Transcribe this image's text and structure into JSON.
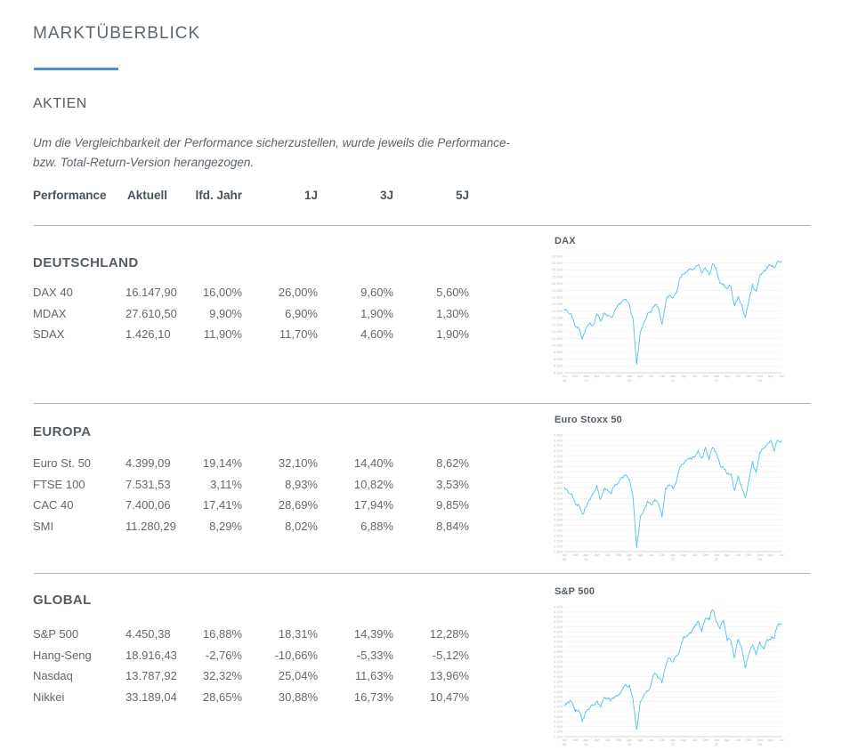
{
  "page": {
    "title": "MARKTÜBERBLICK",
    "section_heading": "AKTIEN",
    "disclaimer": "Um die Vergleichbarkeit der Performance sicherzustellen, wurde jeweils die Performance-\nbzw. Total-Return-Version herangezogen.",
    "accent_color": "#4a90d2"
  },
  "table": {
    "columns": [
      "Performance",
      "Aktuell",
      "lfd. Jahr",
      "1J",
      "3J",
      "5J"
    ],
    "sections": [
      {
        "name": "DEUTSCHLAND",
        "rows": [
          {
            "label": "DAX 40",
            "values": [
              "16.147,90",
              "16,00%",
              "26,00%",
              "9,60%",
              "5,60%"
            ]
          },
          {
            "label": "MDAX",
            "values": [
              "27.610,50",
              "9,90%",
              "6,90%",
              "1,90%",
              "1,30%"
            ]
          },
          {
            "label": "SDAX",
            "values": [
              "1.426,10",
              "11,90%",
              "11,70%",
              "4,60%",
              "1,90%"
            ]
          }
        ]
      },
      {
        "name": "EUROPA",
        "rows": [
          {
            "label": "Euro St. 50",
            "values": [
              "4.399,09",
              "19,14%",
              "32,10%",
              "14,40%",
              "8,62%"
            ]
          },
          {
            "label": "FTSE 100",
            "values": [
              "7.531,53",
              "3,11%",
              "8,93%",
              "10,82%",
              "3,53%"
            ]
          },
          {
            "label": "CAC 40",
            "values": [
              "7.400,06",
              "17,41%",
              "28,69%",
              "17,94%",
              "9,85%"
            ]
          },
          {
            "label": "SMI",
            "values": [
              "11.280,29",
              "8,29%",
              "8,02%",
              "6,88%",
              "8,84%"
            ]
          }
        ]
      },
      {
        "name": "GLOBAL",
        "rows": [
          {
            "label": "S&P 500",
            "values": [
              "4.450,38",
              "16,88%",
              "18,31%",
              "14,39%",
              "12,28%"
            ]
          },
          {
            "label": "Hang-Seng",
            "values": [
              "18.916,43",
              "-2,76%",
              "-10,66%",
              "-5,33%",
              "-5,12%"
            ]
          },
          {
            "label": "Nasdaq",
            "values": [
              "13.787,92",
              "32,32%",
              "25,04%",
              "11,63%",
              "13,96%"
            ]
          },
          {
            "label": "Nikkei",
            "values": [
              "33.189,04",
              "28,65%",
              "30,88%",
              "16,73%",
              "10,47%"
            ]
          }
        ]
      }
    ]
  },
  "chart_data": [
    {
      "type": "line",
      "title": "DAX",
      "line_color": "#54c2e7",
      "x_note": "monthly, Jul 2018 - Jul 2023",
      "x_ticks": [
        "Jul 18",
        "Okt",
        "Jan 19",
        "Apr",
        "Jul",
        "Okt",
        "Jan 20",
        "Apr",
        "Jul",
        "Okt",
        "Jan 21",
        "Apr",
        "Jul",
        "Okt",
        "Jan 22",
        "Apr",
        "Jul",
        "Okt",
        "Jan 23",
        "Apr",
        "Jul"
      ],
      "ylim": [
        8000,
        16500
      ],
      "y_step": 500,
      "grid": true,
      "legend": "none",
      "values": [
        12750,
        12400,
        12250,
        11450,
        11250,
        10560,
        11200,
        11500,
        11520,
        12350,
        11730,
        12400,
        12200,
        11940,
        12430,
        12870,
        13240,
        13250,
        12980,
        11890,
        8560,
        10860,
        11590,
        12310,
        12310,
        12950,
        12760,
        11560,
        13290,
        13720,
        13430,
        13790,
        15010,
        15140,
        15420,
        15530,
        15540,
        15840,
        15260,
        15690,
        15100,
        15880,
        15470,
        14460,
        14410,
        14100,
        14390,
        12780,
        13480,
        12830,
        12110,
        13250,
        14400,
        13920,
        15130,
        15360,
        15630,
        15920,
        15660,
        16150,
        16150
      ]
    },
    {
      "type": "line",
      "title": "Euro Stoxx 50",
      "line_color": "#54c2e7",
      "x_note": "monthly, Jul 2018 - Jul 2023",
      "x_ticks": [
        "Jul 18",
        "Okt",
        "Jan 19",
        "Apr",
        "Jul",
        "Okt",
        "Jan 20",
        "Apr",
        "Jul",
        "Okt",
        "Jan 21",
        "Apr",
        "Jul",
        "Okt",
        "Jan 22",
        "Apr",
        "Jul",
        "Okt",
        "Jan 23",
        "Apr",
        "Jul"
      ],
      "ylim": [
        2300,
        4500
      ],
      "y_step": 100,
      "grid": true,
      "legend": "none",
      "values": [
        3525,
        3393,
        3399,
        3197,
        3173,
        3001,
        3159,
        3298,
        3352,
        3515,
        3280,
        3474,
        3467,
        3427,
        3569,
        3604,
        3704,
        3745,
        3641,
        3329,
        2385,
        2928,
        3050,
        3234,
        3174,
        3273,
        3193,
        2958,
        3493,
        3553,
        3481,
        3636,
        3919,
        3974,
        4039,
        4064,
        4089,
        4196,
        4048,
        4251,
        4063,
        4298,
        4175,
        3924,
        3903,
        3803,
        3789,
        3455,
        3708,
        3517,
        3318,
        3618,
        3965,
        3794,
        4163,
        4238,
        4315,
        4359,
        4218,
        4399,
        4399
      ]
    },
    {
      "type": "line",
      "title": "S&P 500",
      "line_color": "#54c2e7",
      "x_note": "monthly, Jul 2018 - Jul 2023",
      "x_ticks": [
        "Jul 18",
        "Okt",
        "Jan 19",
        "Apr",
        "Jul",
        "Okt",
        "Jan 20",
        "Apr",
        "Jul",
        "Okt",
        "Jan 21",
        "Apr",
        "Jul",
        "Okt",
        "Jan 22",
        "Apr",
        "Jul",
        "Okt",
        "Jan 23",
        "Apr",
        "Jul"
      ],
      "ylim": [
        2200,
        4800
      ],
      "y_step": 100,
      "grid": true,
      "legend": "none",
      "values": [
        2816,
        2902,
        2914,
        2712,
        2760,
        2507,
        2704,
        2784,
        2834,
        2946,
        2752,
        2942,
        2980,
        2926,
        2977,
        3038,
        3141,
        3231,
        3226,
        2954,
        2305,
        2912,
        3044,
        3100,
        3271,
        3500,
        3363,
        3270,
        3622,
        3756,
        3714,
        3811,
        3973,
        4181,
        4204,
        4298,
        4395,
        4523,
        4308,
        4605,
        4567,
        4766,
        4516,
        4374,
        4530,
        4132,
        4132,
        3785,
        4130,
        3955,
        3586,
        3872,
        4080,
        3840,
        4077,
        3970,
        4109,
        4169,
        4180,
        4450,
        4450
      ]
    }
  ]
}
